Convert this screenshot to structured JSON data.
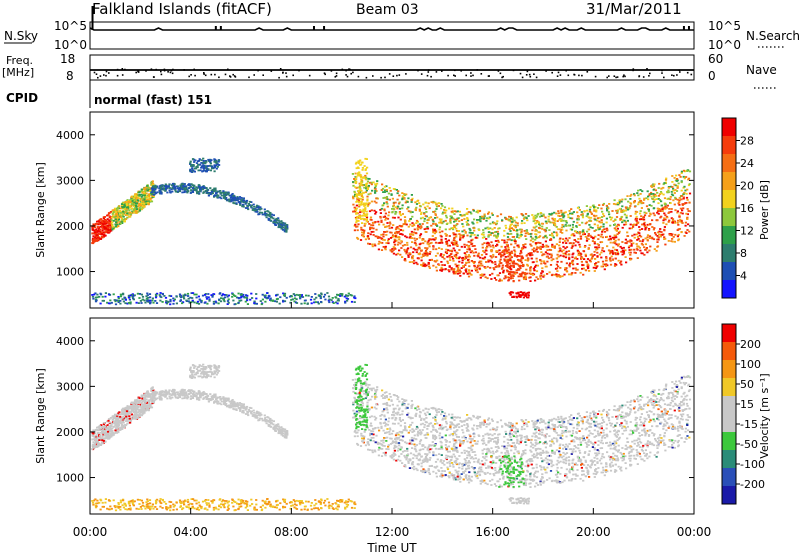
{
  "header": {
    "title": "Falkland Islands (fitACF)",
    "beam": "Beam 03",
    "date": "31/Mar/2011"
  },
  "panels": {
    "nsky": {
      "label": "N.Sky",
      "left_ticks": [
        "10^5",
        "10^0"
      ],
      "right_label": "N.Search",
      "right_ticks": [
        "10^5",
        "10^0"
      ]
    },
    "freq": {
      "label_line1": "Freq.",
      "label_line2": "[MHz]",
      "left_ticks": [
        "18",
        "8"
      ],
      "right_label": "Nave",
      "right_ticks": [
        "60",
        "0"
      ]
    },
    "cpid": {
      "label": "CPID",
      "text": "normal (fast) 151"
    }
  },
  "colors": {
    "power": [
      "#1414ff",
      "#1e4fb4",
      "#2d7d6e",
      "#2ea04a",
      "#8dc83c",
      "#f2d21e",
      "#f5a01a",
      "#f56e14",
      "#f53c0c",
      "#f00000"
    ],
    "velocity": [
      "#1a1aa8",
      "#2a4fb8",
      "#2a8c78",
      "#3cc83c",
      "#c8c8c8",
      "#c8c8c8",
      "#f0c828",
      "#f59614",
      "#f55a0a",
      "#f00000"
    ],
    "ground": "#c8c8c8"
  },
  "chart_data": [
    {
      "type": "heatmap",
      "name": "power",
      "ylabel": "Slant Range [km]",
      "yticks": [
        1000,
        2000,
        3000,
        4000
      ],
      "ylim": [
        200,
        4500
      ],
      "x_hours": [
        0,
        4,
        8,
        12,
        16,
        20,
        24
      ],
      "colorbar": {
        "label": "Power [dB]",
        "ticks": [
          4,
          8,
          12,
          16,
          20,
          24,
          28
        ],
        "range": [
          0,
          32
        ]
      }
    },
    {
      "type": "heatmap",
      "name": "velocity",
      "ylabel": "Slant Range [km]",
      "yticks": [
        1000,
        2000,
        3000,
        4000
      ],
      "ylim": [
        200,
        4500
      ],
      "colorbar": {
        "label": "Velocity [m s⁻¹]",
        "ticks": [
          200,
          100,
          50,
          15,
          -15,
          -50,
          -100,
          -200
        ]
      }
    }
  ],
  "xaxis": {
    "label": "Time UT",
    "ticks": [
      "00:00",
      "04:00",
      "08:00",
      "12:00",
      "16:00",
      "20:00",
      "00:00"
    ]
  }
}
